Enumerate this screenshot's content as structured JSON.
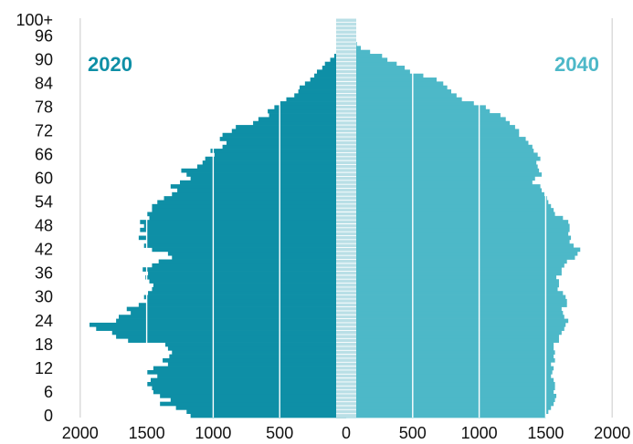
{
  "chart_data": {
    "type": "bar",
    "orientation": "horizontal-population-pyramid",
    "panel_labels": {
      "left": "2020",
      "right": "2040"
    },
    "colors": {
      "left": "#0E8FA6",
      "right": "#4DB8C8",
      "center_stripe": "#b9dfe6",
      "grid": "#ffffff"
    },
    "x_ticks": [
      "2000",
      "1500",
      "1000",
      "500",
      "0",
      "500",
      "1000",
      "1500",
      "2000"
    ],
    "x_range": [
      -2000,
      2000
    ],
    "y_ticks": [
      {
        "age": 0,
        "label": "0"
      },
      {
        "age": 6,
        "label": "6"
      },
      {
        "age": 12,
        "label": "12"
      },
      {
        "age": 18,
        "label": "18"
      },
      {
        "age": 24,
        "label": "24"
      },
      {
        "age": 30,
        "label": "30"
      },
      {
        "age": 36,
        "label": "36"
      },
      {
        "age": 42,
        "label": "42"
      },
      {
        "age": 48,
        "label": "48"
      },
      {
        "age": 54,
        "label": "54"
      },
      {
        "age": 60,
        "label": "60"
      },
      {
        "age": 66,
        "label": "66"
      },
      {
        "age": 72,
        "label": "72"
      },
      {
        "age": 78,
        "label": "78"
      },
      {
        "age": 84,
        "label": "84"
      },
      {
        "age": 90,
        "label": "90"
      },
      {
        "age": 96,
        "label": "96"
      },
      {
        "age": 100,
        "label": "100+"
      }
    ],
    "ages": [
      0,
      1,
      2,
      3,
      4,
      5,
      6,
      7,
      8,
      9,
      10,
      11,
      12,
      13,
      14,
      15,
      16,
      17,
      18,
      19,
      20,
      21,
      22,
      23,
      24,
      25,
      26,
      27,
      28,
      29,
      30,
      31,
      32,
      33,
      34,
      35,
      36,
      37,
      38,
      39,
      40,
      41,
      42,
      43,
      44,
      45,
      46,
      47,
      48,
      49,
      50,
      51,
      52,
      53,
      54,
      55,
      56,
      57,
      58,
      59,
      60,
      61,
      62,
      63,
      64,
      65,
      66,
      67,
      68,
      69,
      70,
      71,
      72,
      73,
      74,
      75,
      76,
      77,
      78,
      79,
      80,
      81,
      82,
      83,
      84,
      85,
      86,
      87,
      88,
      89,
      90,
      91,
      92,
      93,
      94,
      95,
      96,
      97,
      98,
      99,
      100
    ],
    "series": [
      {
        "name": "2020",
        "values": [
          1170,
          1200,
          1280,
          1400,
          1320,
          1400,
          1450,
          1460,
          1500,
          1470,
          1420,
          1500,
          1450,
          1340,
          1380,
          1330,
          1310,
          1340,
          1360,
          1640,
          1730,
          1760,
          1880,
          1930,
          1730,
          1710,
          1620,
          1650,
          1560,
          1500,
          1520,
          1490,
          1460,
          1450,
          1480,
          1510,
          1490,
          1530,
          1460,
          1410,
          1310,
          1340,
          1460,
          1520,
          1500,
          1560,
          1500,
          1550,
          1520,
          1550,
          1480,
          1500,
          1460,
          1460,
          1420,
          1370,
          1310,
          1270,
          1320,
          1250,
          1170,
          1200,
          1240,
          1120,
          1080,
          1060,
          990,
          1020,
          930,
          900,
          950,
          930,
          860,
          830,
          700,
          660,
          580,
          590,
          540,
          500,
          450,
          390,
          360,
          350,
          310,
          270,
          240,
          220,
          180,
          160,
          120,
          90,
          60,
          40,
          25,
          20,
          12,
          8,
          4,
          2,
          1
        ]
      },
      {
        "name": "2040",
        "values": [
          1500,
          1520,
          1540,
          1560,
          1570,
          1580,
          1560,
          1570,
          1570,
          1560,
          1540,
          1550,
          1560,
          1540,
          1570,
          1560,
          1570,
          1560,
          1560,
          1600,
          1600,
          1620,
          1640,
          1650,
          1670,
          1640,
          1630,
          1620,
          1660,
          1660,
          1650,
          1630,
          1590,
          1600,
          1600,
          1580,
          1620,
          1620,
          1640,
          1660,
          1720,
          1740,
          1760,
          1710,
          1680,
          1690,
          1670,
          1680,
          1680,
          1670,
          1630,
          1570,
          1560,
          1540,
          1520,
          1510,
          1490,
          1470,
          1460,
          1400,
          1420,
          1470,
          1450,
          1440,
          1430,
          1460,
          1440,
          1410,
          1400,
          1370,
          1350,
          1300,
          1300,
          1270,
          1230,
          1200,
          1160,
          1080,
          1050,
          960,
          870,
          830,
          790,
          760,
          730,
          680,
          580,
          480,
          440,
          380,
          310,
          270,
          180,
          110,
          80,
          55,
          30,
          22,
          15,
          10,
          5
        ]
      }
    ]
  }
}
